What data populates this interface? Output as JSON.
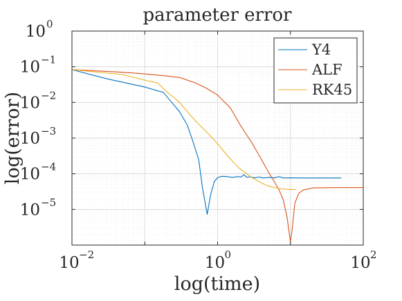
{
  "chart_data": {
    "type": "line",
    "title": "parameter error",
    "xlabel": "log(time)",
    "ylabel": "log(error)",
    "xscale": "log",
    "yscale": "log",
    "xlim": [
      0.01,
      100
    ],
    "ylim": [
      1e-06,
      1
    ],
    "grid": true,
    "minor_grid": true,
    "legend_position": "top-right",
    "x_ticks": [
      {
        "base": "10",
        "exp": "−2"
      },
      {
        "base": "10",
        "exp": "0"
      },
      {
        "base": "10",
        "exp": "2"
      }
    ],
    "y_ticks": [
      {
        "base": "10",
        "exp": "0"
      },
      {
        "base": "10",
        "exp": "−1"
      },
      {
        "base": "10",
        "exp": "−2"
      },
      {
        "base": "10",
        "exp": "−3"
      },
      {
        "base": "10",
        "exp": "−4"
      },
      {
        "base": "10",
        "exp": "−5"
      }
    ],
    "series": [
      {
        "name": "Y4",
        "color": "#0072BD",
        "points": [
          [
            0.01,
            0.083
          ],
          [
            0.03,
            0.046
          ],
          [
            0.1,
            0.027
          ],
          [
            0.18,
            0.019
          ],
          [
            0.3,
            0.0055
          ],
          [
            0.38,
            0.0024
          ],
          [
            0.45,
            0.0009
          ],
          [
            0.55,
            0.00025
          ],
          [
            0.62,
            4e-05
          ],
          [
            0.72,
            7.3e-06
          ],
          [
            0.8,
            2.5e-05
          ],
          [
            0.9,
            6e-05
          ],
          [
            1.0,
            7.8e-05
          ],
          [
            1.15,
            8.5e-05
          ],
          [
            1.35,
            8.3e-05
          ],
          [
            1.6,
            7.9e-05
          ],
          [
            1.9,
            8.3e-05
          ],
          [
            2.1,
            8.1e-05
          ],
          [
            2.3,
            9.4e-05
          ],
          [
            2.5,
            8e-05
          ],
          [
            2.8,
            8.2e-05
          ],
          [
            3.2,
            7.7e-05
          ],
          [
            3.7,
            8.1e-05
          ],
          [
            4.3,
            7.6e-05
          ],
          [
            5.0,
            7.9e-05
          ],
          [
            6.0,
            7.7e-05
          ],
          [
            7.0,
            8.3e-05
          ],
          [
            8.0,
            7.6e-05
          ],
          [
            10,
            7.7e-05
          ],
          [
            15,
            7.6e-05
          ],
          [
            25,
            7.6e-05
          ],
          [
            50,
            7.6e-05
          ]
        ]
      },
      {
        "name": "ALF",
        "color": "#D95319",
        "points": [
          [
            0.01,
            0.083
          ],
          [
            0.05,
            0.07
          ],
          [
            0.1,
            0.063
          ],
          [
            0.2,
            0.055
          ],
          [
            0.3,
            0.05
          ],
          [
            0.35,
            0.045
          ],
          [
            0.5,
            0.035
          ],
          [
            0.7,
            0.025
          ],
          [
            1.0,
            0.016
          ],
          [
            1.5,
            0.007
          ],
          [
            2.0,
            0.0025
          ],
          [
            3.0,
            0.0007
          ],
          [
            4.0,
            0.00025
          ],
          [
            5.0,
            0.00011
          ],
          [
            6.0,
            6e-05
          ],
          [
            7.0,
            3.5e-05
          ],
          [
            8.0,
            1.8e-05
          ],
          [
            9.0,
            6e-06
          ],
          [
            10.0,
            1.2e-06
          ],
          [
            10.5,
            2.5e-06
          ],
          [
            11.5,
            1.5e-05
          ],
          [
            13,
            2.8e-05
          ],
          [
            15,
            3.5e-05
          ],
          [
            20,
            4e-05
          ],
          [
            40,
            4.1e-05
          ],
          [
            100,
            4.1e-05
          ]
        ]
      },
      {
        "name": "RK45",
        "color": "#EDB120",
        "points": [
          [
            0.01,
            0.083
          ],
          [
            0.05,
            0.06
          ],
          [
            0.1,
            0.042
          ],
          [
            0.15,
            0.035
          ],
          [
            0.2,
            0.02
          ],
          [
            0.3,
            0.01
          ],
          [
            0.4,
            0.005
          ],
          [
            0.5,
            0.003
          ],
          [
            0.7,
            0.0015
          ],
          [
            1.0,
            0.0007
          ],
          [
            1.4,
            0.0003
          ],
          [
            2.0,
            0.00014
          ],
          [
            3.0,
            7.7e-05
          ],
          [
            4.0,
            5.5e-05
          ],
          [
            5.0,
            4.5e-05
          ],
          [
            7.0,
            3.8e-05
          ],
          [
            10.0,
            3.6e-05
          ],
          [
            12.0,
            3.6e-05
          ]
        ]
      }
    ]
  }
}
